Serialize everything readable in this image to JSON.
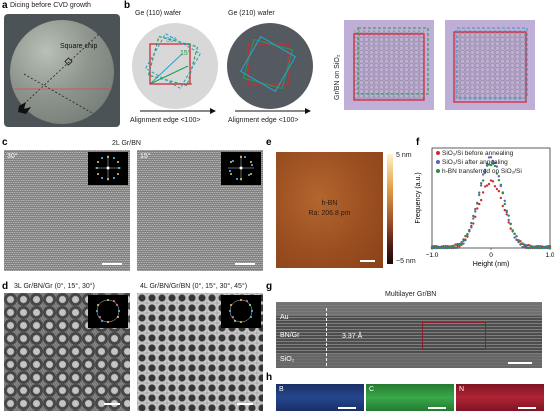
{
  "panels": {
    "a": {
      "label": "a",
      "caption": "Dicing before CVD growth",
      "chip_label": "Square chip"
    },
    "b": {
      "label": "b",
      "wafer1": "Ge (110) wafer",
      "wafer2": "Ge (210) wafer",
      "angle1": "30°",
      "angle2": "15°",
      "edge1": "Alignment edge <100>",
      "edge2": "Alignment edge <100>",
      "side_label": "Gr/BN on SiO₂"
    },
    "c": {
      "label": "c",
      "title": "2L Gr/BN",
      "img1_angle": "30°",
      "img2_angle": "15°"
    },
    "d": {
      "label": "d",
      "title1": "3L Gr/BN/Gr (0°, 15°, 30°)",
      "title2": "4L Gr/BN/Gr/BN (0°, 15°, 30°, 45°)"
    },
    "e": {
      "label": "e",
      "material": "h-BN",
      "roughness": "Ra: 206.8 pm",
      "cb_max": "5 nm",
      "cb_min": "−5 nm"
    },
    "f": {
      "label": "f",
      "ylabel": "Frequency (a.u.)",
      "xlabel": "Height (nm)",
      "legend": [
        "SiO₂/Si before annealing",
        "SiO₂/Si after annealing",
        "h-BN transferred on SiO₂/Si"
      ]
    },
    "g": {
      "label": "g",
      "title": "Multilayer Gr/BN",
      "layer_top": "Au",
      "layer_mid": "BN/Gr",
      "layer_bot": "SiO₂",
      "thickness": "3.37 Å"
    },
    "h": {
      "label": "h",
      "maps": [
        "B",
        "C",
        "N"
      ]
    }
  },
  "chart_data": {
    "type": "scatter",
    "title": "",
    "xlabel": "Height (nm)",
    "ylabel": "Frequency (a.u.)",
    "xlim": [
      -1.0,
      1.0
    ],
    "xticks": [
      "−1.0",
      "0",
      "1.0"
    ],
    "series": [
      {
        "name": "SiO₂/Si before annealing",
        "color": "#d22c2c",
        "amp": 0.72,
        "sigma": 0.22
      },
      {
        "name": "SiO₂/Si after annealing",
        "color": "#5a63b4",
        "amp": 0.98,
        "sigma": 0.2
      },
      {
        "name": "h-BN transferred on SiO₂/Si",
        "color": "#2e8a4e",
        "amp": 0.92,
        "sigma": 0.21
      }
    ],
    "legend_position": "top-right"
  },
  "colors": {
    "wafer_bg": "#6e7577",
    "ge110": "#d8d8d8",
    "ge210": "#555a60",
    "sq_red": "#d12a3a",
    "sq_green": "#1e9e50",
    "sq_blue": "#2a9fd0",
    "purple": "#bfaed6",
    "eds_b": "#1e3b7a",
    "eds_c": "#2f9a3e",
    "eds_n": "#9e1e2e"
  }
}
